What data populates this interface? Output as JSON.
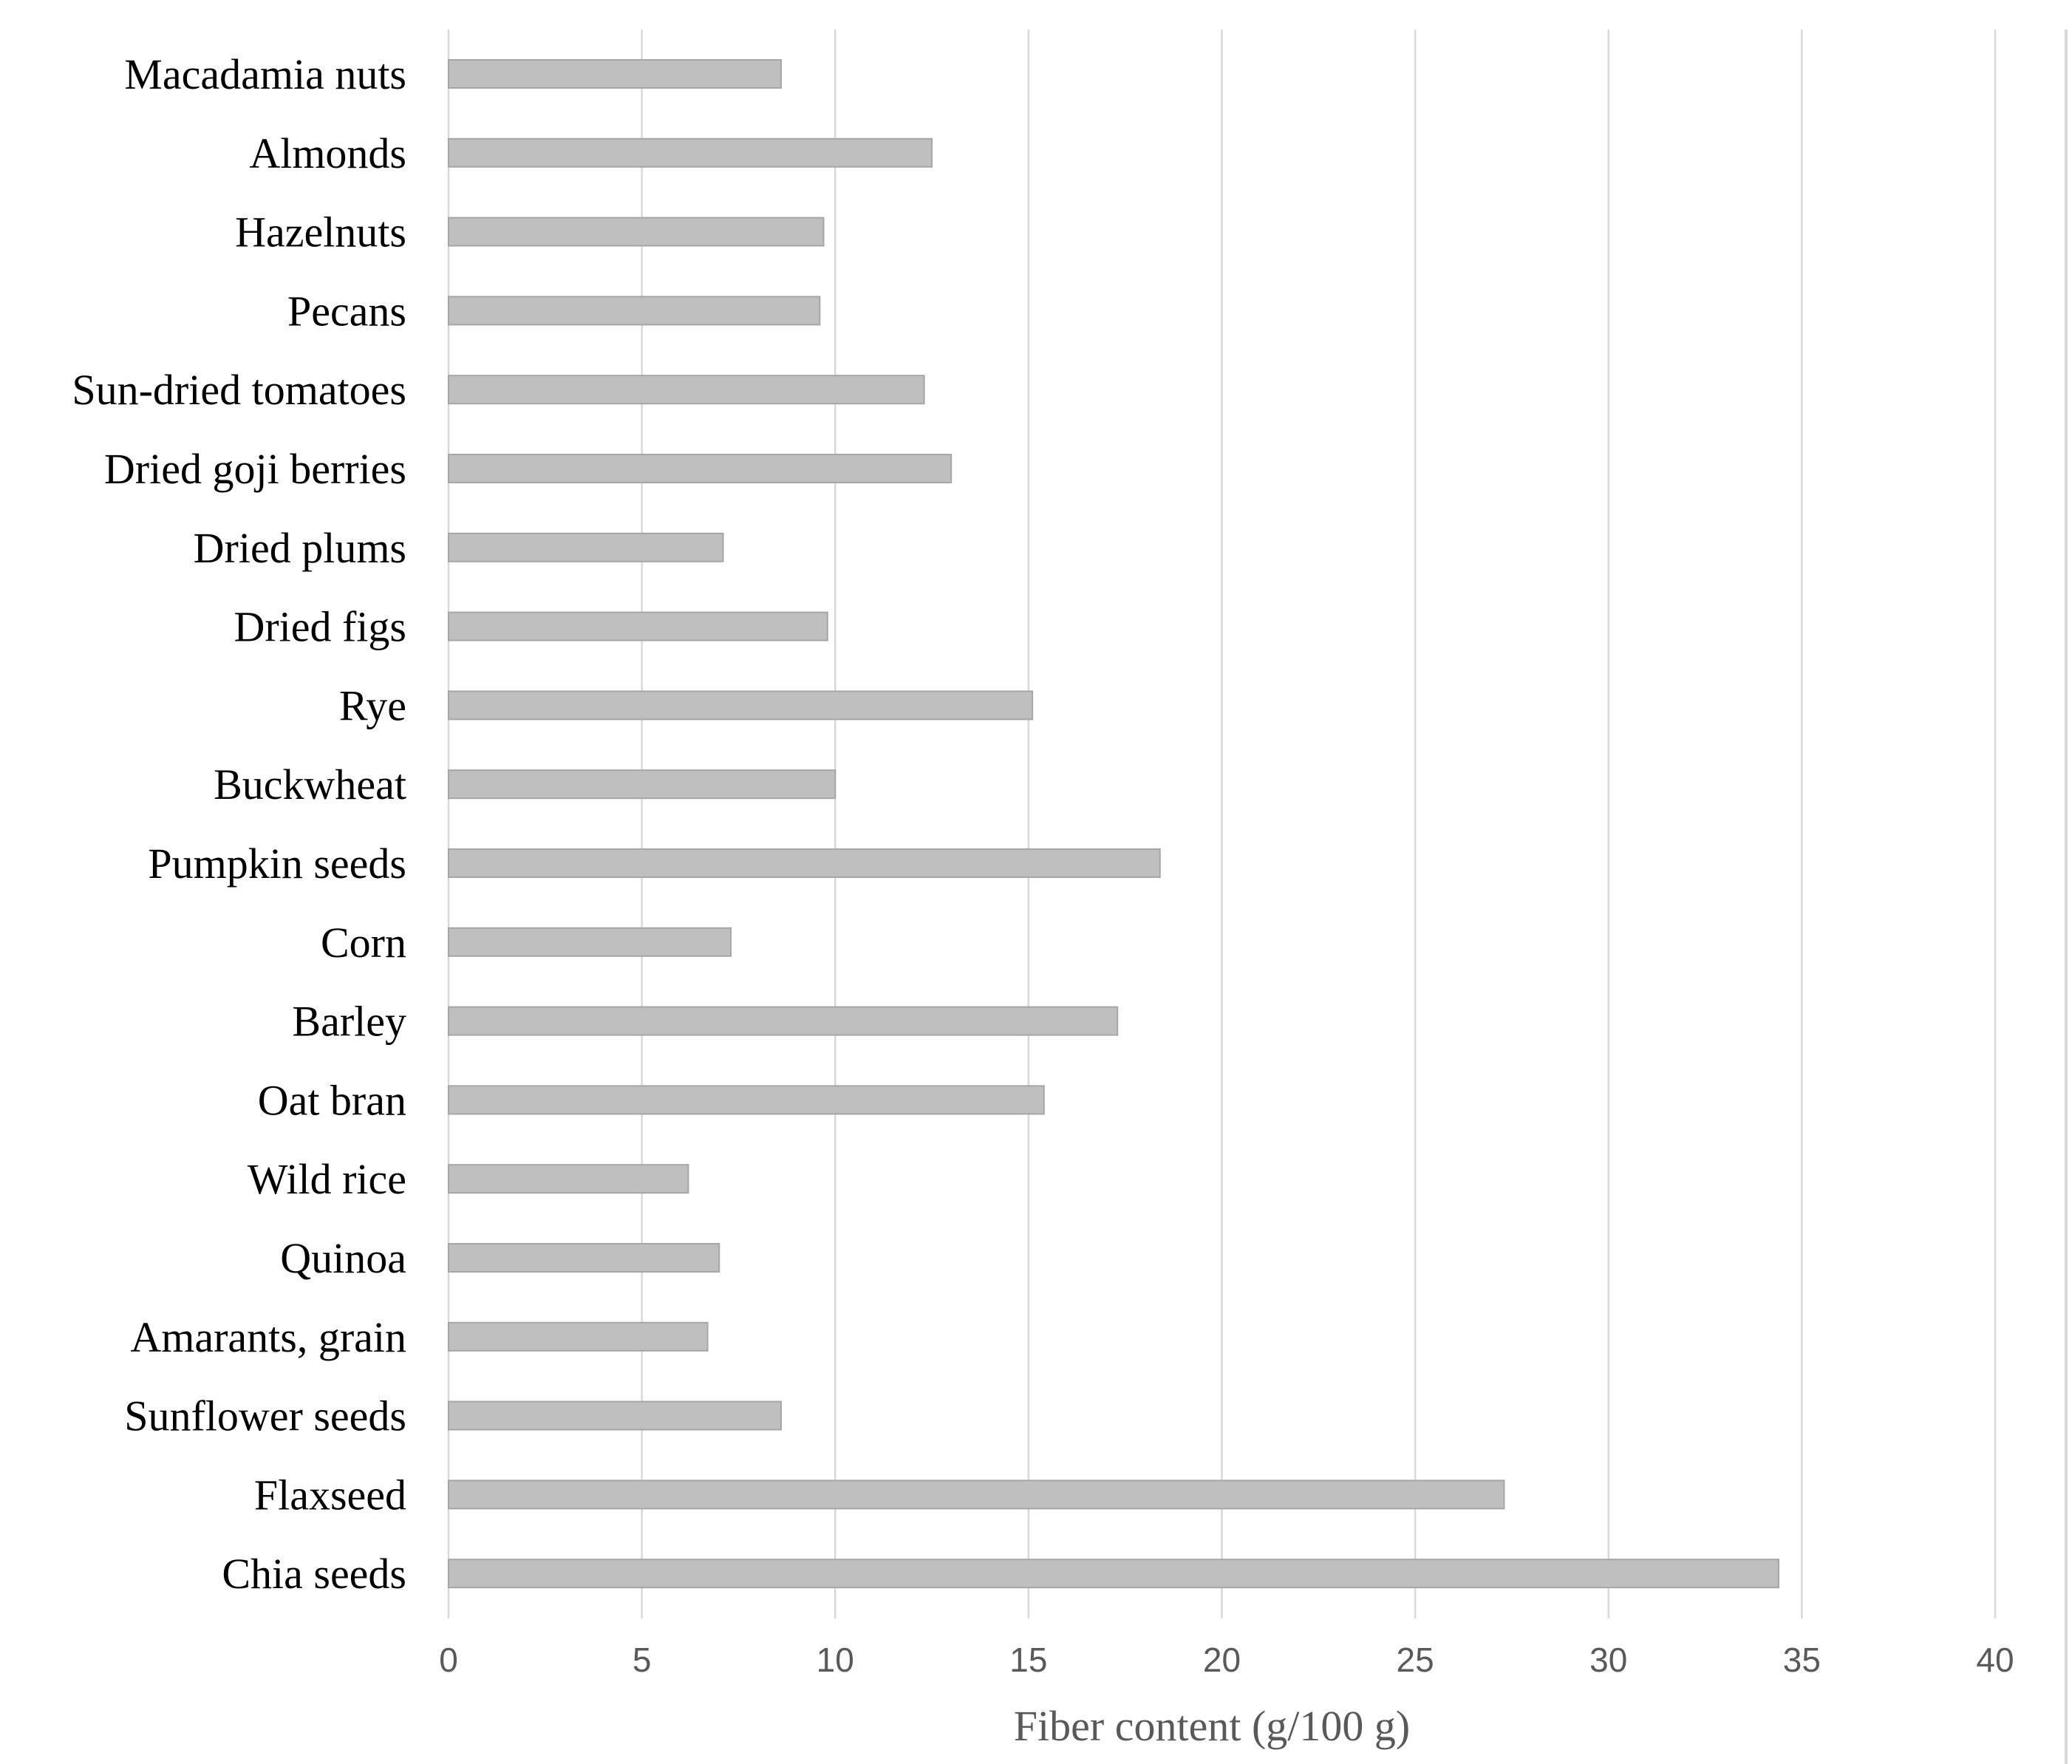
{
  "chart_data": {
    "type": "bar",
    "orientation": "horizontal",
    "title": "",
    "xlabel": "Fiber content (g/100 g)",
    "ylabel": "",
    "xlim": [
      0,
      40
    ],
    "xticks": [
      0,
      5,
      10,
      15,
      20,
      25,
      30,
      35,
      40
    ],
    "grid": true,
    "legend": "none",
    "bar_color": "#bfbfbf",
    "categories": [
      "Macadamia nuts",
      "Almonds",
      "Hazelnuts",
      "Pecans",
      "Sun-dried tomatoes",
      "Dried goji berries",
      "Dried plums",
      "Dried figs",
      "Rye",
      "Buckwheat",
      "Pumpkin seeds",
      "Corn",
      "Barley",
      "Oat bran",
      "Wild rice",
      "Quinoa",
      "Amarants, grain",
      "Sunflower seeds",
      "Flaxseed",
      "Chia seeds"
    ],
    "values": [
      8.6,
      12.5,
      9.7,
      9.6,
      12.3,
      13.0,
      7.1,
      9.8,
      15.1,
      10.0,
      18.4,
      7.3,
      17.3,
      15.4,
      6.2,
      7.0,
      6.7,
      8.6,
      27.3,
      34.4
    ]
  }
}
